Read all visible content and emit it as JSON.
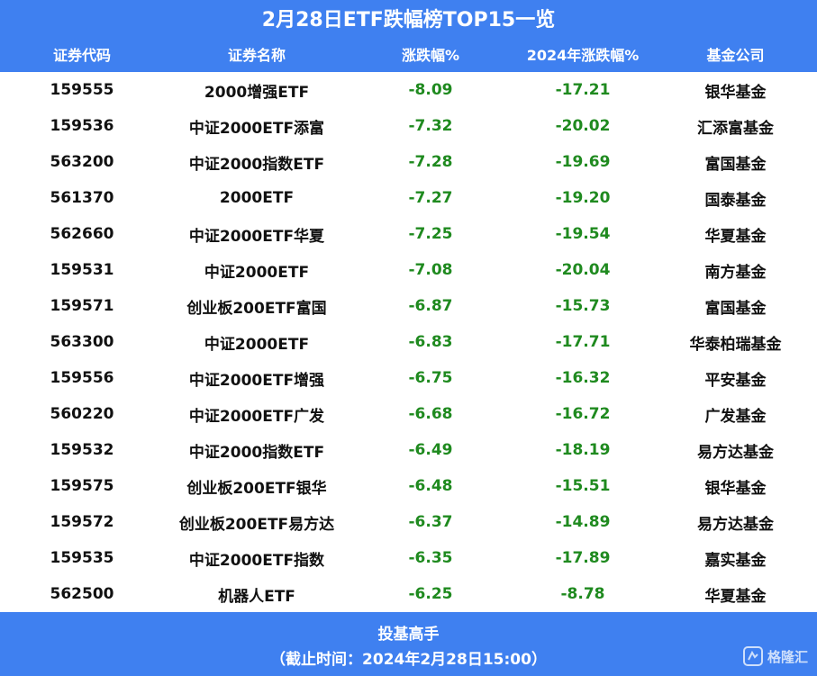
{
  "title": "2月28日ETF跌幅榜TOP15一览",
  "columns": [
    "证券代码",
    "证券名称",
    "涨跌幅%",
    "2024年涨跌幅%",
    "基金公司"
  ],
  "rows": [
    [
      "159555",
      "2000增强ETF",
      "-8.09",
      "-17.21",
      "银华基金"
    ],
    [
      "159536",
      "中证2000ETF添富",
      "-7.32",
      "-20.02",
      "汇添富基金"
    ],
    [
      "563200",
      "中证2000指数ETF",
      "-7.28",
      "-19.69",
      "富国基金"
    ],
    [
      "561370",
      "2000ETF",
      "-7.27",
      "-19.20",
      "国泰基金"
    ],
    [
      "562660",
      "中证2000ETF华夏",
      "-7.25",
      "-19.54",
      "华夏基金"
    ],
    [
      "159531",
      "中证2000ETF",
      "-7.08",
      "-20.04",
      "南方基金"
    ],
    [
      "159571",
      "创业板200ETF富国",
      "-6.87",
      "-15.73",
      "富国基金"
    ],
    [
      "563300",
      "中证2000ETF",
      "-6.83",
      "-17.71",
      "华泰柏瑞基金"
    ],
    [
      "159556",
      "中证2000ETF增强",
      "-6.75",
      "-16.32",
      "平安基金"
    ],
    [
      "560220",
      "中证2000ETF广发",
      "-6.68",
      "-16.72",
      "广发基金"
    ],
    [
      "159532",
      "中证2000指数ETF",
      "-6.49",
      "-18.19",
      "易方达基金"
    ],
    [
      "159575",
      "创业板200ETF银华",
      "-6.48",
      "-15.51",
      "银华基金"
    ],
    [
      "159572",
      "创业板200ETF易方达",
      "-6.37",
      "-14.89",
      "易方达基金"
    ],
    [
      "159535",
      "中证2000ETF指数",
      "-6.35",
      "-17.89",
      "嘉实基金"
    ],
    [
      "562500",
      "机器人ETF",
      "-6.25",
      "-8.78",
      "华夏基金"
    ]
  ],
  "footer": {
    "line1": "投基高手",
    "line2": "（截止时间：2024年2月28日15:00）"
  },
  "watermark": {
    "text": "格隆汇",
    "icon": "gelonghui-logo-icon"
  },
  "colors": {
    "header_bg": "#3f80f0",
    "negative": "#1f8a1f",
    "text": "#111111"
  }
}
